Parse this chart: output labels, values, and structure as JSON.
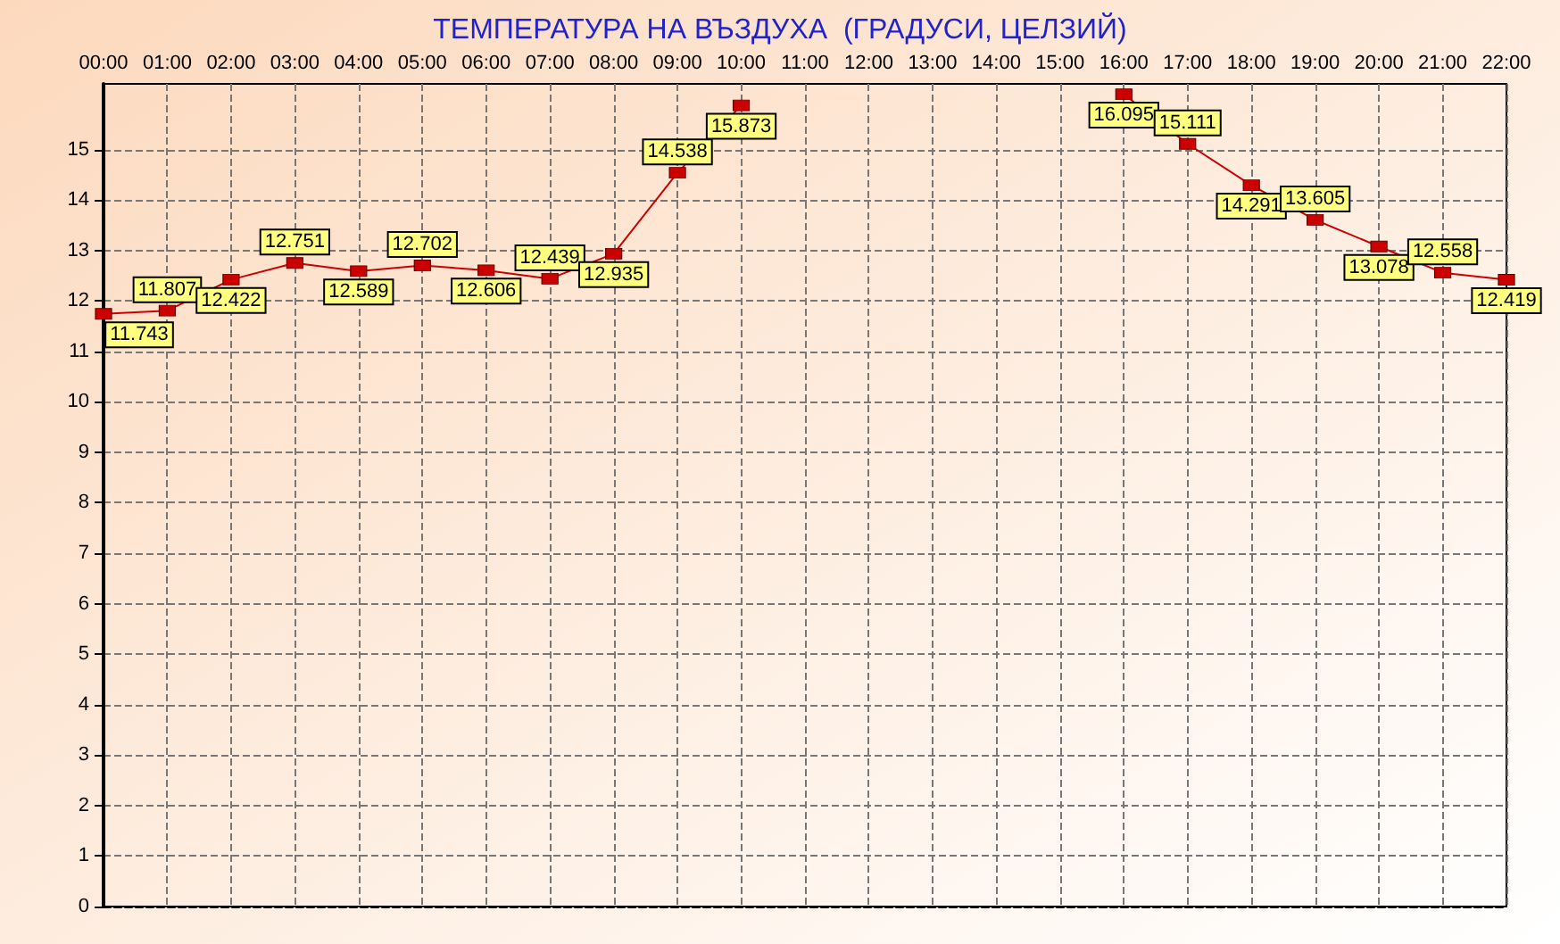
{
  "chart_data": {
    "type": "line",
    "title": "ТЕМПЕРАТУРА НА ВЪЗДУХА  (ГРАДУСИ, ЦЕЛЗИЙ)",
    "categories": [
      "00:00",
      "01:00",
      "02:00",
      "03:00",
      "04:00",
      "05:00",
      "06:00",
      "07:00",
      "08:00",
      "09:00",
      "10:00",
      "11:00",
      "12:00",
      "13:00",
      "14:00",
      "15:00",
      "16:00",
      "17:00",
      "18:00",
      "19:00",
      "20:00",
      "21:00",
      "22:00"
    ],
    "series": [
      {
        "color": "#cc0000",
        "values": [
          11.743,
          11.807,
          12.422,
          12.751,
          12.589,
          12.702,
          12.606,
          12.439,
          12.935,
          14.538,
          15.873,
          null,
          null,
          null,
          null,
          null,
          16.095,
          15.111,
          14.291,
          13.605,
          13.078,
          12.558,
          12.419
        ]
      }
    ],
    "ylim": [
      0,
      16.3
    ],
    "yticks": [
      0,
      1,
      2,
      3,
      4,
      5,
      6,
      7,
      8,
      9,
      10,
      11,
      12,
      13,
      14,
      15
    ],
    "grid": true,
    "data_labels": true,
    "marker": "square",
    "line_style": "solid"
  }
}
